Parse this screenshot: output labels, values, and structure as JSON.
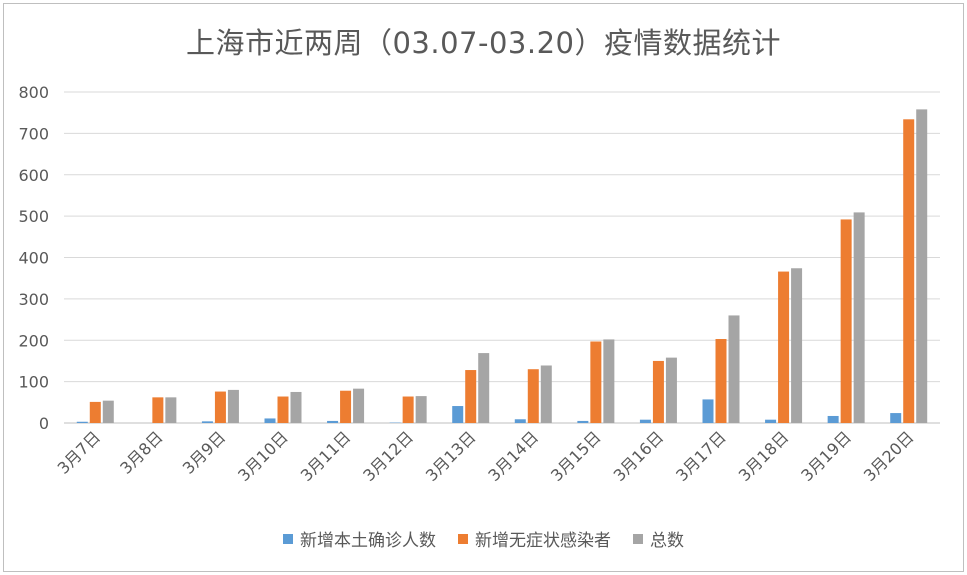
{
  "chart_data": {
    "type": "bar",
    "title": "上海市近两周（03.07-03.20）疫情数据统计",
    "categories": [
      "3月7日",
      "3月8日",
      "3月9日",
      "3月10日",
      "3月11日",
      "3月12日",
      "3月13日",
      "3月14日",
      "3月15日",
      "3月16日",
      "3月17日",
      "3月18日",
      "3月19日",
      "3月20日"
    ],
    "series": [
      {
        "name": "新增本土确诊人数",
        "color": "#5b9bd5",
        "values": [
          3,
          0,
          4,
          11,
          5,
          1,
          41,
          9,
          5,
          8,
          57,
          8,
          17,
          24
        ]
      },
      {
        "name": "新增无症状感染者",
        "color": "#ed7d31",
        "values": [
          51,
          62,
          76,
          64,
          78,
          64,
          128,
          130,
          197,
          150,
          203,
          366,
          492,
          734
        ]
      },
      {
        "name": "总数",
        "color": "#a5a5a5",
        "values": [
          54,
          62,
          80,
          75,
          83,
          65,
          169,
          139,
          202,
          158,
          260,
          374,
          509,
          758
        ]
      }
    ],
    "yticks": [
      "0",
      "100",
      "200",
      "300",
      "400",
      "500",
      "600",
      "700",
      "800"
    ],
    "ylim": [
      0,
      800
    ],
    "grid": true,
    "legend_position": "bottom"
  }
}
